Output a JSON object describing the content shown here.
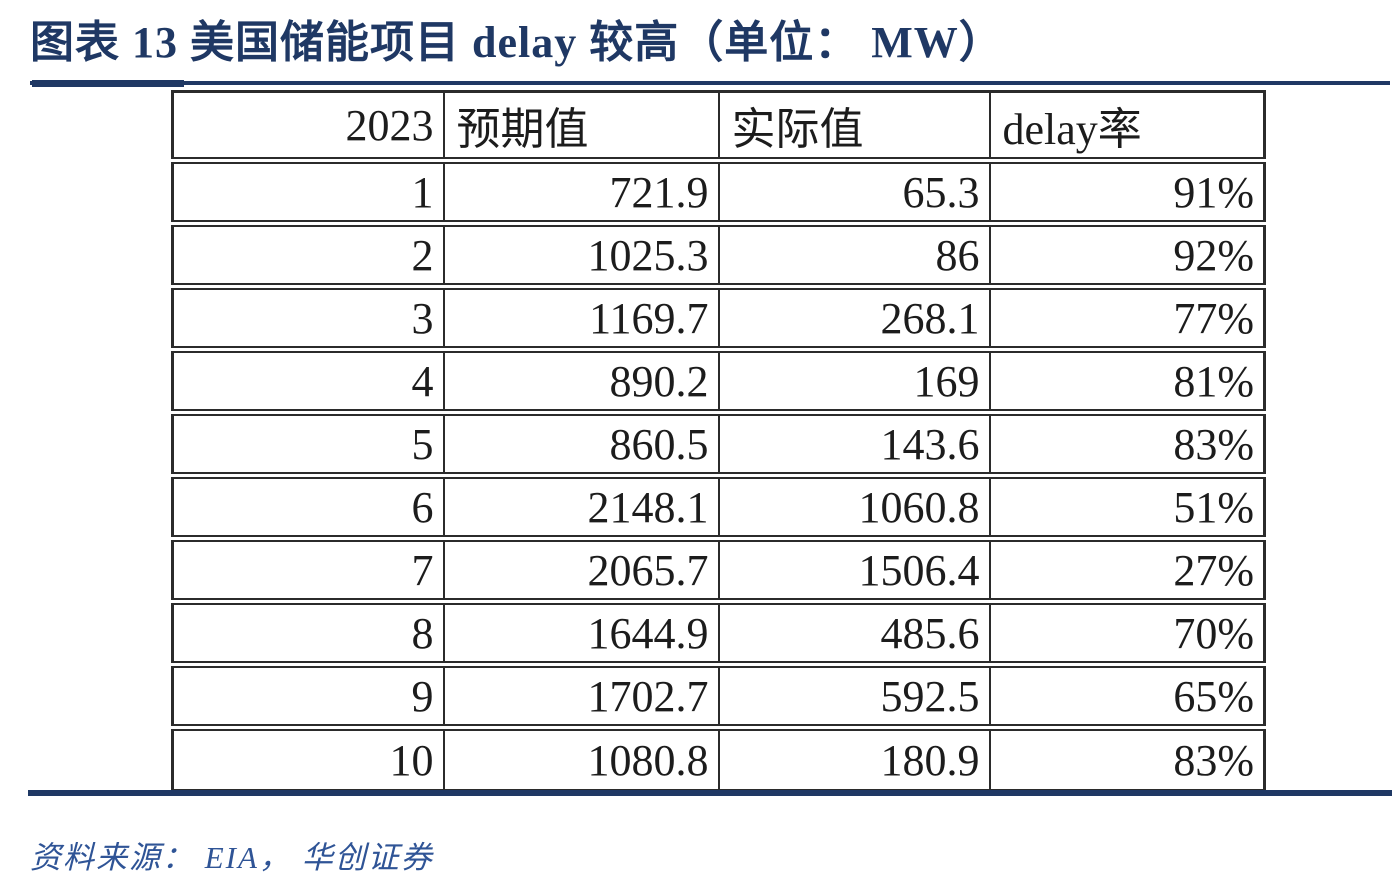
{
  "title": "图表 13  美国储能项目 delay 较高（单位： MW）",
  "source_note": "资料来源： EIA， 华创证券",
  "colors": {
    "accent_navy": "#1F3864",
    "source_text": "#2F5496",
    "table_border": "#2b2b2b",
    "table_text": "#1c1c1c"
  },
  "table": {
    "headers": [
      "2023",
      "预期值",
      "实际值",
      "delay率"
    ],
    "rows": [
      {
        "month": "1",
        "expected": "721.9",
        "actual": "65.3",
        "delay": "91%"
      },
      {
        "month": "2",
        "expected": "1025.3",
        "actual": "86",
        "delay": "92%"
      },
      {
        "month": "3",
        "expected": "1169.7",
        "actual": "268.1",
        "delay": "77%"
      },
      {
        "month": "4",
        "expected": "890.2",
        "actual": "169",
        "delay": "81%"
      },
      {
        "month": "5",
        "expected": "860.5",
        "actual": "143.6",
        "delay": "83%"
      },
      {
        "month": "6",
        "expected": "2148.1",
        "actual": "1060.8",
        "delay": "51%"
      },
      {
        "month": "7",
        "expected": "2065.7",
        "actual": "1506.4",
        "delay": "27%"
      },
      {
        "month": "8",
        "expected": "1644.9",
        "actual": "485.6",
        "delay": "70%"
      },
      {
        "month": "9",
        "expected": "1702.7",
        "actual": "592.5",
        "delay": "65%"
      },
      {
        "month": "10",
        "expected": "1080.8",
        "actual": "180.9",
        "delay": "83%"
      }
    ]
  },
  "chart_data": {
    "type": "table",
    "title": "美国储能项目 delay 较高（单位：MW）",
    "figure_label": "图表 13",
    "columns": [
      "2023",
      "预期值",
      "实际值",
      "delay率"
    ],
    "rows": [
      [
        1,
        721.9,
        65.3,
        "91%"
      ],
      [
        2,
        1025.3,
        86,
        "92%"
      ],
      [
        3,
        1169.7,
        268.1,
        "77%"
      ],
      [
        4,
        890.2,
        169,
        "81%"
      ],
      [
        5,
        860.5,
        143.6,
        "83%"
      ],
      [
        6,
        2148.1,
        1060.8,
        "51%"
      ],
      [
        7,
        2065.7,
        1506.4,
        "27%"
      ],
      [
        8,
        1644.9,
        485.6,
        "70%"
      ],
      [
        9,
        1702.7,
        592.5,
        "65%"
      ],
      [
        10,
        1080.8,
        180.9,
        "83%"
      ]
    ],
    "source": "EIA，华创证券"
  }
}
